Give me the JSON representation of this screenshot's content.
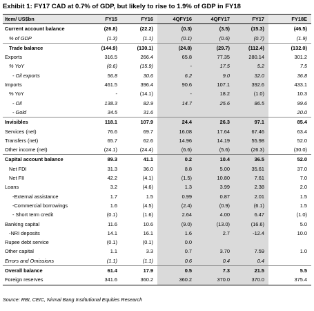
{
  "title": "Exhibit 1: FY17 CAD at 0.7% of GDP, but likely to rise to 1.9% of GDP in FY18",
  "table": {
    "header": [
      "Item/ US$bn",
      "FY15",
      "FY16",
      "4QFY16",
      "4QFY17",
      "FY17",
      "FY18E"
    ],
    "rows": [
      [
        "Current account balance",
        "(26.8)",
        "(22.2)",
        "(0.3)",
        "(3.5)",
        "(15.3)",
        "(46.5)"
      ],
      [
        "% of GDP",
        "(1.3)",
        "(1.1)",
        "(0.1)",
        "(0.6)",
        "(0.7)",
        "(1.9)"
      ],
      [
        "Trade balance",
        "(144.9)",
        "(130.1)",
        "(24.8)",
        "(29.7)",
        "(112.4)",
        "(132.0)"
      ],
      [
        "Exports",
        "316.5",
        "266.4",
        "65.8",
        "77.35",
        "280.14",
        "301.2"
      ],
      [
        "% YoY",
        "(0.6)",
        "(15.9)",
        "-",
        "17.5",
        "5.2",
        "7.5"
      ],
      [
        "- Oil exports",
        "56.8",
        "30.6",
        "6.2",
        "9.0",
        "32.0",
        "36.8"
      ],
      [
        "Imports",
        "461.5",
        "396.4",
        "90.6",
        "107.1",
        "392.6",
        "433.1"
      ],
      [
        "% YoY",
        "-",
        "(14.1)",
        "-",
        "18.2",
        "(1.0)",
        "10.3"
      ],
      [
        "- Oil",
        "138.3",
        "82.9",
        "14.7",
        "25.6",
        "86.5",
        "99.6"
      ],
      [
        "- Gold",
        "34.5",
        "31.6",
        null,
        null,
        null,
        "20.0"
      ],
      [
        "Invisibles",
        "118.1",
        "107.9",
        "24.4",
        "26.3",
        "97.1",
        "85.4"
      ],
      [
        "Services (net)",
        "76.6",
        "69.7",
        "16.08",
        "17.64",
        "67.46",
        "63.4"
      ],
      [
        "Transfers (net)",
        "65.7",
        "62.6",
        "14.96",
        "14.19",
        "55.98",
        "52.0"
      ],
      [
        "Other income (net)",
        "(24.1)",
        "(24.4)",
        "(6.6)",
        "(5.6)",
        "(26.3)",
        "(30.0)"
      ],
      [
        "Capital account balance",
        "89.3",
        "41.1",
        "0.2",
        "10.4",
        "36.5",
        "52.0"
      ],
      [
        "Net FDI",
        "31.3",
        "36.0",
        "8.8",
        "5.00",
        "35.61",
        "37.0"
      ],
      [
        "Net FII",
        "42.2",
        "(4.1)",
        "(1.5)",
        "10.80",
        "7.61",
        "7.0"
      ],
      [
        "Loans",
        "3.2",
        "(4.6)",
        "1.3",
        "3.99",
        "2.38",
        "2.0"
      ],
      [
        "-External assistance",
        "1.7",
        "1.5",
        "0.99",
        "0.87",
        "2.01",
        "1.5"
      ],
      [
        "-Commercial borrowings",
        "1.6",
        "(4.5)",
        "(2.4)",
        "(0.9)",
        "(6.1)",
        "1.5"
      ],
      [
        "- Short term credit",
        "(0.1)",
        "(1.6)",
        "2.64",
        "4.00",
        "6.47",
        "(1.0)"
      ],
      [
        "Banking capital",
        "11.6",
        "10.6",
        "(9.0)",
        "(13.0)",
        "(16.6)",
        "5.0"
      ],
      [
        "-NRI deposits",
        "14.1",
        "16.1",
        "1.6",
        "2.7",
        "-12.4",
        "10.0"
      ],
      [
        "Rupee debt service",
        "(0.1)",
        "(0.1)",
        "0.0",
        null,
        null,
        null
      ],
      [
        "Other capital",
        "1.1",
        "3.3",
        "0.7",
        "3.70",
        "7.59",
        "1.0"
      ],
      [
        "Errors and Omissions",
        "(1.1)",
        "(1.1)",
        "0.6",
        "0.4",
        "0.4",
        null
      ],
      [
        "Overall balance",
        "61.4",
        "17.9",
        "0.5",
        "7.3",
        "21.5",
        "5.5"
      ],
      [
        "Foreign reserves",
        "341.6",
        "360.2",
        "360.2",
        "370.0",
        "370.0",
        "375.4"
      ]
    ]
  },
  "source": "Source: RBI, CEIC, Nirmal Bang Institutional Equities Research"
}
